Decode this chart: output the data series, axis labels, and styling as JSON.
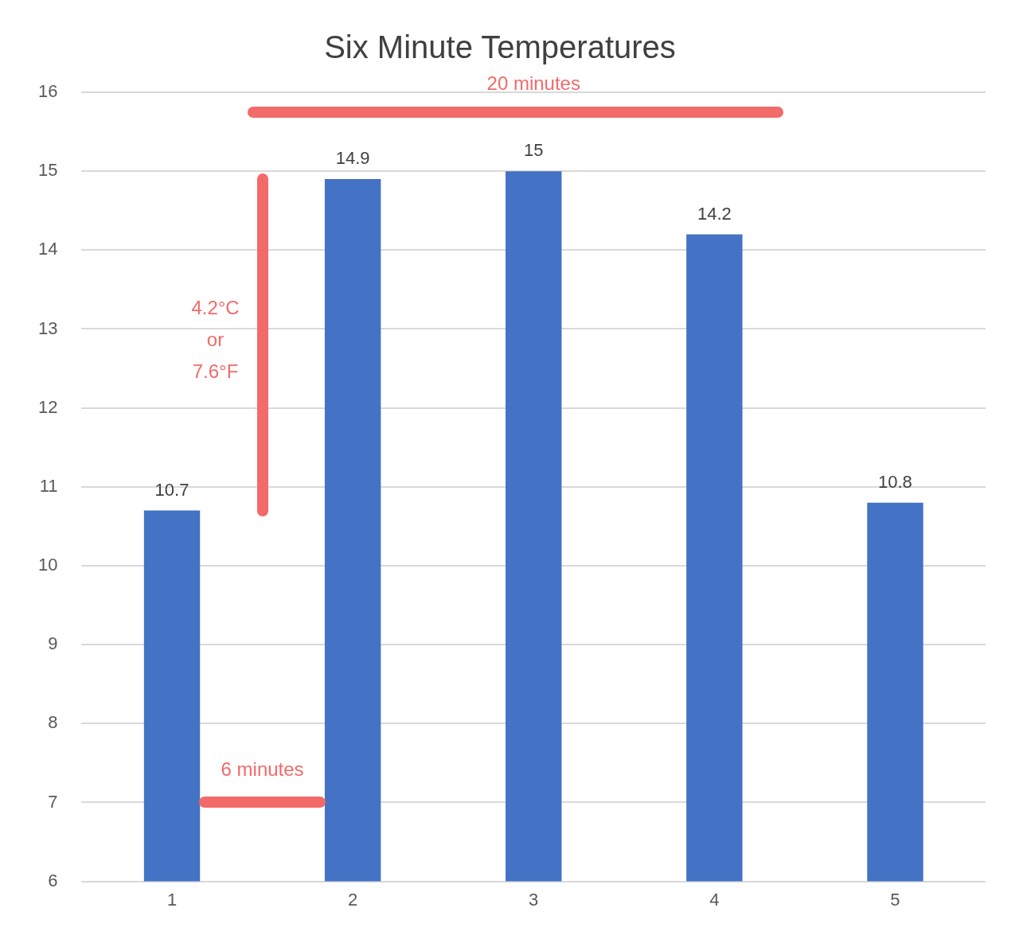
{
  "chart_data": {
    "type": "bar",
    "title": "Six Minute Temperatures",
    "categories": [
      "1",
      "2",
      "3",
      "4",
      "5"
    ],
    "values": [
      10.7,
      14.9,
      15,
      14.2,
      10.8
    ],
    "color": "#4472c4",
    "ylim": [
      6,
      16
    ],
    "yticks": [
      6,
      7,
      8,
      9,
      10,
      11,
      12,
      13,
      14,
      15,
      16
    ],
    "grid": "y",
    "data_labels": true,
    "legend": false,
    "annotations": [
      "20 minutes",
      "4.2°C",
      "or",
      "7.6°F",
      "6 minutes"
    ]
  }
}
